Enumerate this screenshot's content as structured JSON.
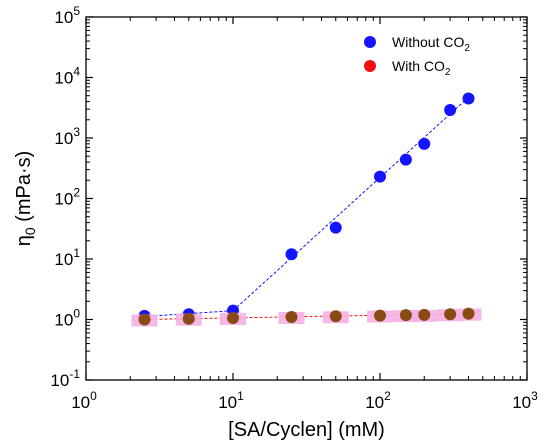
{
  "chart_data": {
    "type": "scatter",
    "xlabel": "[SA/Cyclen] (mM)",
    "ylabel": {
      "base": "η",
      "sub": "0",
      "rest": " (mPa·s)"
    },
    "xscale": "log",
    "yscale": "log",
    "xlim": [
      1,
      1000
    ],
    "ylim": [
      0.1,
      100000
    ],
    "x_ticks": [
      {
        "value": 1,
        "base": "10",
        "exp": "0"
      },
      {
        "value": 10,
        "base": "10",
        "exp": "1"
      },
      {
        "value": 100,
        "base": "10",
        "exp": "2"
      },
      {
        "value": 1000,
        "base": "10",
        "exp": "3"
      }
    ],
    "y_ticks": [
      {
        "value": 0.1,
        "base": "10",
        "exp": "-1"
      },
      {
        "value": 1,
        "base": "10",
        "exp": "0"
      },
      {
        "value": 10,
        "base": "10",
        "exp": "1"
      },
      {
        "value": 100,
        "base": "10",
        "exp": "2"
      },
      {
        "value": 1000,
        "base": "10",
        "exp": "3"
      },
      {
        "value": 10000,
        "base": "10",
        "exp": "4"
      },
      {
        "value": 100000,
        "base": "10",
        "exp": "5"
      }
    ],
    "grid": false,
    "legend_position": "top-right",
    "series": [
      {
        "name": "Without CO2",
        "legend": {
          "main": "Without CO",
          "sub": "2"
        },
        "color": "#1414ff",
        "x": [
          2.5,
          5,
          10,
          25,
          50,
          100,
          150,
          200,
          300,
          400
        ],
        "y": [
          1.15,
          1.22,
          1.4,
          12,
          33,
          230,
          440,
          800,
          2900,
          4500
        ],
        "fit_segments": [
          {
            "x": [
              2.5,
              10
            ],
            "y": [
              1.12,
              1.4
            ]
          },
          {
            "x": [
              10,
              400
            ],
            "y": [
              1.4,
              4700
            ]
          }
        ]
      },
      {
        "name": "With CO2",
        "legend": {
          "main": "With CO",
          "sub": "2"
        },
        "color": "#ee1111",
        "marker_fill": "#8a4a14",
        "error_color": "#f5b0e4",
        "x": [
          2.5,
          5,
          10,
          25,
          50,
          100,
          150,
          200,
          300,
          400
        ],
        "y": [
          1.0,
          1.03,
          1.06,
          1.1,
          1.13,
          1.16,
          1.18,
          1.19,
          1.22,
          1.25
        ],
        "fit_segments": [
          {
            "x": [
              2.5,
              400
            ],
            "y": [
              1.0,
              1.25
            ]
          }
        ]
      }
    ]
  }
}
